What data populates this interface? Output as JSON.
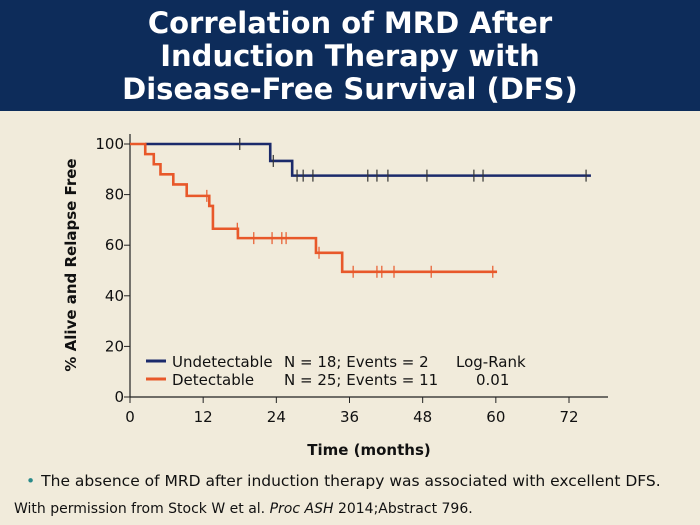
{
  "title": "Correlation of MRD After\nInduction Therapy with\nDisease-Free Survival (DFS)",
  "chart_data": {
    "type": "line",
    "subtype": "kaplan-meier step",
    "xlabel": "Time (months)",
    "ylabel": "% Alive and Relapse Free",
    "xlim": [
      0,
      78
    ],
    "ylim": [
      0,
      100
    ],
    "xticks": [
      0,
      12,
      24,
      36,
      48,
      60,
      72
    ],
    "yticks": [
      0,
      20,
      40,
      60,
      80,
      100
    ],
    "grid": false,
    "legend_position": "bottom-left",
    "series": [
      {
        "name": "Undetectable",
        "stats": "N = 18; Events = 2",
        "color": "#1b2a6b",
        "steps": [
          [
            2.5,
            100
          ],
          [
            23,
            93.3
          ],
          [
            26.6,
            87.5
          ],
          [
            75.6,
            87.5
          ]
        ],
        "censored": [
          18,
          23.5,
          27.4,
          28.4,
          30,
          39,
          40.5,
          42.3,
          48.7,
          56.4,
          57.9,
          74.8
        ]
      },
      {
        "name": "Detectable",
        "stats": "N = 25; Events = 11",
        "color": "#e8582a",
        "steps": [
          [
            0,
            100
          ],
          [
            2.5,
            96
          ],
          [
            3.9,
            92
          ],
          [
            5,
            88
          ],
          [
            7.1,
            84
          ],
          [
            9.3,
            79.5
          ],
          [
            13,
            75.5
          ],
          [
            13.6,
            66.5
          ],
          [
            17.7,
            62.8
          ],
          [
            30.5,
            57
          ],
          [
            34.8,
            49.5
          ],
          [
            60.2,
            49.5
          ]
        ],
        "censored": [
          12.6,
          17.6,
          20.3,
          23.3,
          24.9,
          25.6,
          31,
          36.6,
          40.5,
          41.3,
          43.3,
          49.4,
          59.5
        ]
      }
    ],
    "annotation": {
      "label": "Log-Rank",
      "value": "0.01"
    }
  },
  "bullet": "The absence of MRD after induction therapy was associated with excellent DFS.",
  "footer": {
    "prefix": "With permission from Stock W et al. ",
    "journal": "Proc ASH",
    "suffix": " 2014;Abstract 796."
  }
}
